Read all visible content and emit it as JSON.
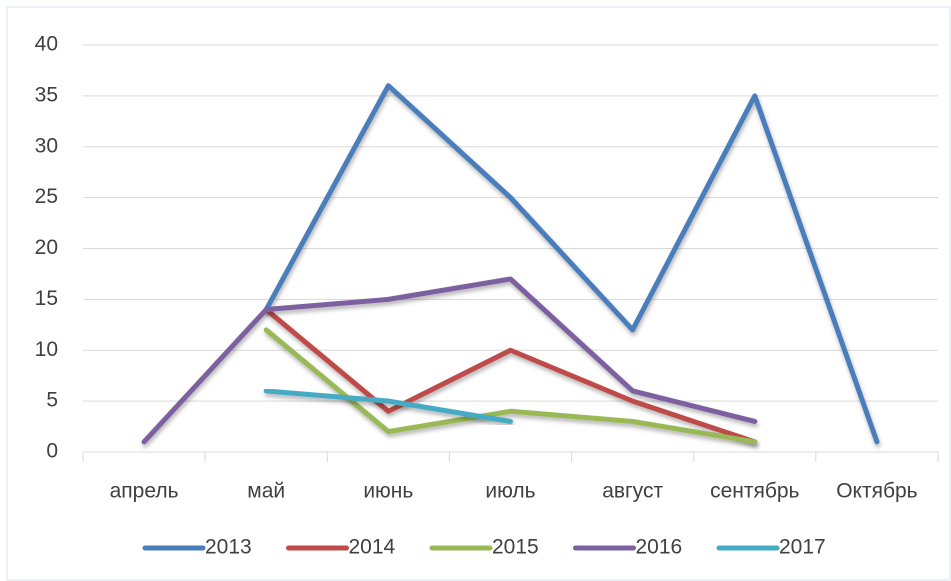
{
  "chart_data": {
    "type": "line",
    "categories": [
      "апрель",
      "май",
      "июнь",
      "июль",
      "август",
      "сентябрь",
      "Октябрь"
    ],
    "series": [
      {
        "name": "2013",
        "color": "#4a7ebb",
        "values": [
          null,
          14,
          36,
          25,
          12,
          35,
          1
        ]
      },
      {
        "name": "2014",
        "color": "#be4b48",
        "values": [
          null,
          14,
          4,
          10,
          5,
          1,
          null
        ]
      },
      {
        "name": "2015",
        "color": "#98b954",
        "values": [
          null,
          12,
          2,
          4,
          3,
          1,
          null
        ]
      },
      {
        "name": "2016",
        "color": "#7d60a0",
        "values": [
          1,
          14,
          15,
          17,
          6,
          3,
          null
        ]
      },
      {
        "name": "2017",
        "color": "#46aac5",
        "values": [
          null,
          6,
          5,
          3,
          null,
          null,
          null
        ]
      }
    ],
    "ylim": [
      0,
      40
    ],
    "yticks": [
      0,
      5,
      10,
      15,
      20,
      25,
      30,
      35,
      40
    ],
    "grid": true,
    "legend": "bottom"
  }
}
